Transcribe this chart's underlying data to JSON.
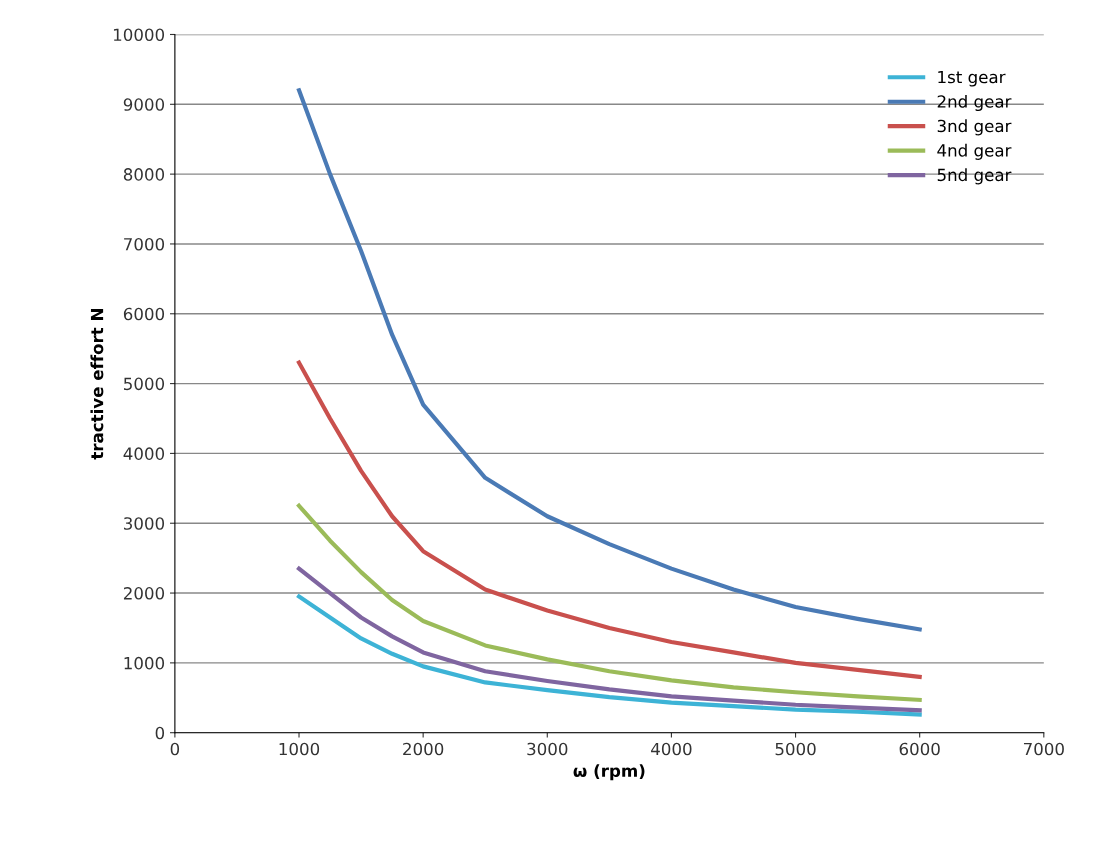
{
  "chart_data": {
    "type": "line",
    "xlabel": "ω (rpm)",
    "ylabel": "tractive effort N",
    "xlim": [
      0,
      7000
    ],
    "xticks": [
      0,
      1000,
      2000,
      3000,
      4000,
      5000,
      6000,
      7000
    ],
    "ylim": [
      0,
      10000
    ],
    "yticks": [
      0,
      1000,
      2000,
      3000,
      4000,
      5000,
      6000,
      7000,
      8000,
      9000,
      10000
    ],
    "grid": "y",
    "legend": "top right",
    "marker": "none",
    "line_style": "solid",
    "x": [
      1000,
      1250,
      1500,
      1750,
      2000,
      2500,
      3000,
      3500,
      4000,
      4500,
      5000,
      5500,
      6000
    ],
    "series": [
      {
        "name": "1st gear",
        "color": "#3db3d6",
        "values": [
          1950,
          1650,
          1350,
          1130,
          950,
          720,
          610,
          510,
          430,
          380,
          330,
          300,
          260
        ]
      },
      {
        "name": "2nd gear",
        "color": "#4a7ab5",
        "values": [
          9200,
          8000,
          6900,
          5700,
          4700,
          3650,
          3100,
          2700,
          2350,
          2050,
          1800,
          1630,
          1480
        ]
      },
      {
        "name": "3nd gear",
        "color": "#c9504d",
        "values": [
          5300,
          4500,
          3750,
          3100,
          2600,
          2050,
          1750,
          1500,
          1300,
          1150,
          1000,
          900,
          800
        ]
      },
      {
        "name": "4nd gear",
        "color": "#9bbb59",
        "values": [
          3250,
          2750,
          2300,
          1900,
          1600,
          1250,
          1050,
          880,
          750,
          650,
          580,
          520,
          470
        ]
      },
      {
        "name": "5nd gear",
        "color": "#7f65a0",
        "values": [
          2350,
          2000,
          1650,
          1380,
          1150,
          880,
          740,
          620,
          520,
          460,
          400,
          360,
          320
        ]
      }
    ]
  }
}
